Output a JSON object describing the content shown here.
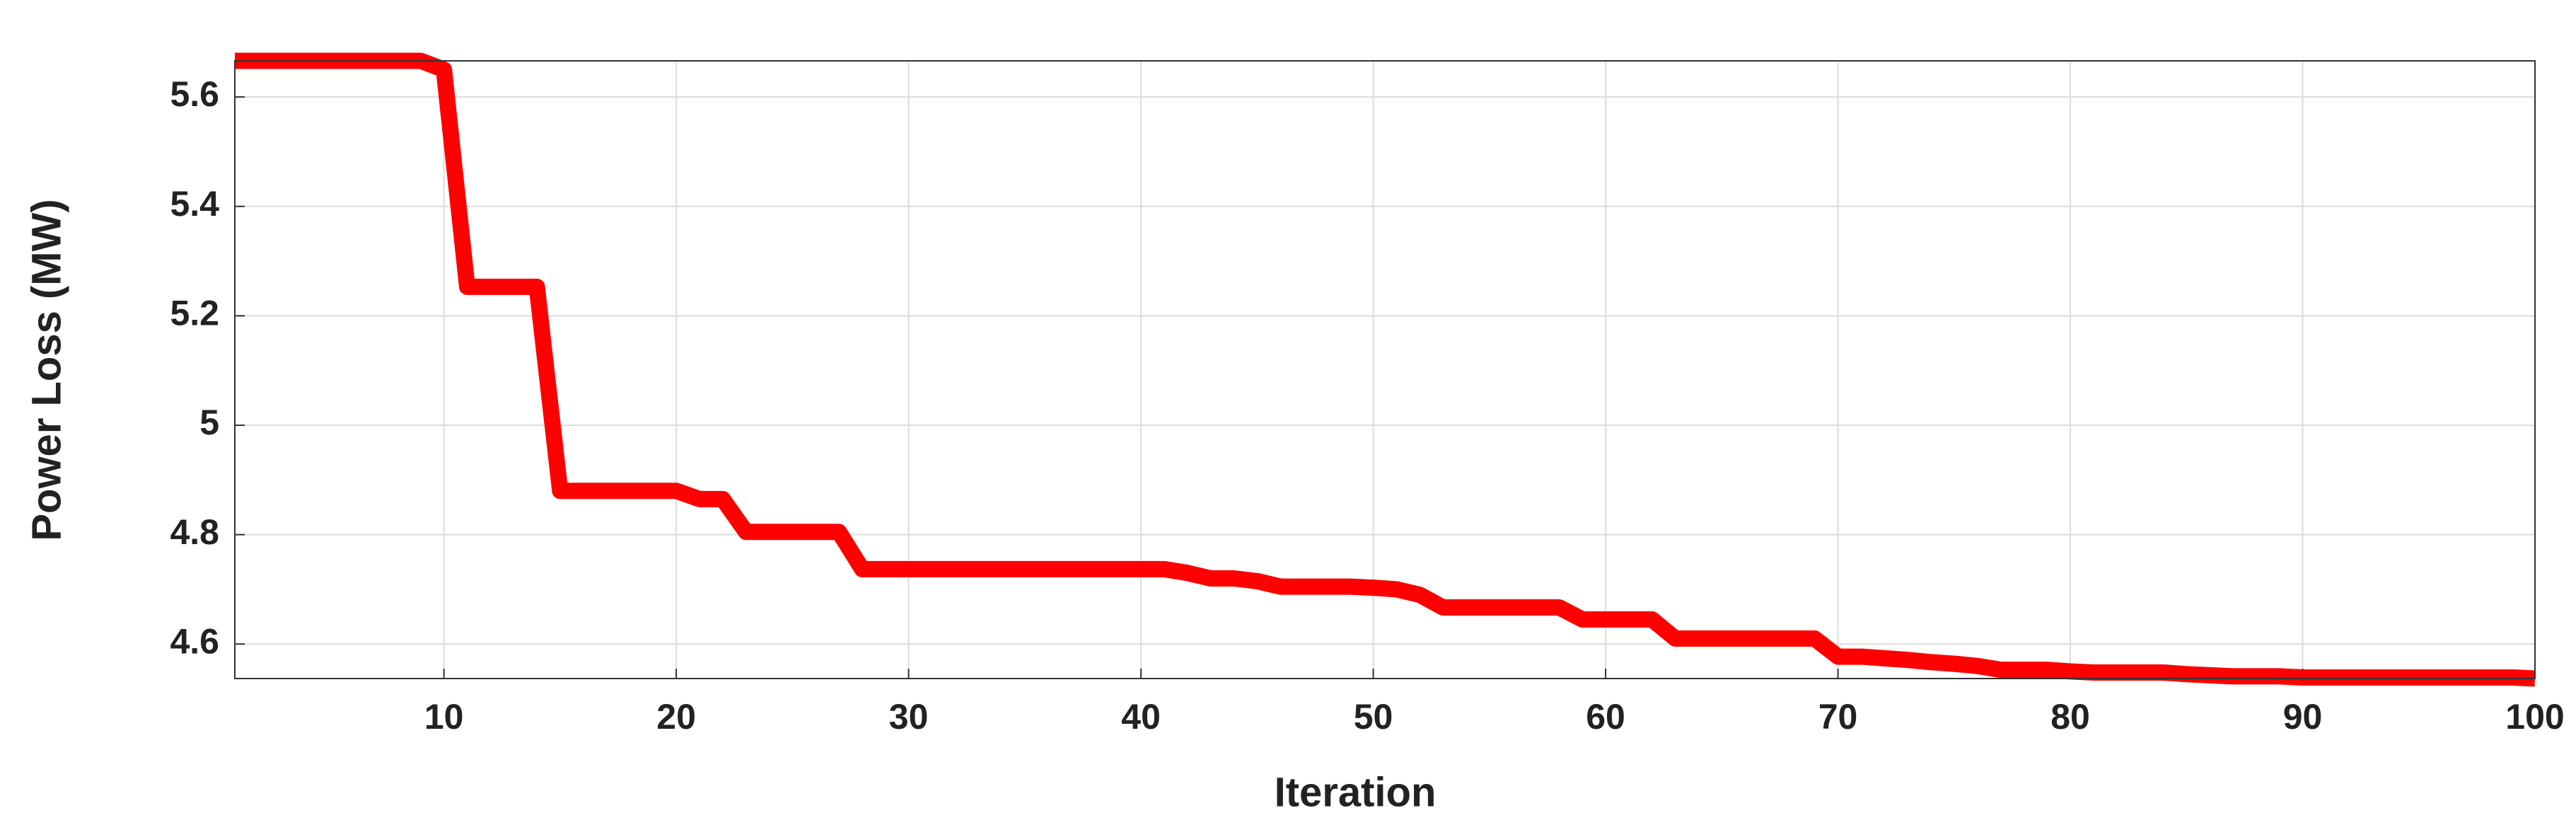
{
  "chart_data": {
    "type": "line",
    "x_label": "Iteration",
    "y_label": "Power Loss (MW)",
    "x": [
      1,
      2,
      3,
      4,
      5,
      6,
      7,
      8,
      9,
      10,
      11,
      12,
      13,
      14,
      15,
      16,
      17,
      18,
      19,
      20,
      21,
      22,
      23,
      24,
      25,
      26,
      27,
      28,
      29,
      30,
      31,
      32,
      33,
      34,
      35,
      36,
      37,
      38,
      39,
      40,
      41,
      42,
      43,
      44,
      45,
      46,
      47,
      48,
      49,
      50,
      51,
      52,
      53,
      54,
      55,
      56,
      57,
      58,
      59,
      60,
      61,
      62,
      63,
      64,
      65,
      66,
      67,
      68,
      69,
      70,
      71,
      72,
      73,
      74,
      75,
      76,
      77,
      78,
      79,
      80,
      81,
      82,
      83,
      84,
      85,
      86,
      87,
      88,
      89,
      90,
      91,
      92,
      93,
      94,
      95,
      96,
      97,
      98,
      99,
      100
    ],
    "series": [
      {
        "color": "#ff0000",
        "values": [
          5.666,
          5.666,
          5.666,
          5.666,
          5.666,
          5.666,
          5.666,
          5.666,
          5.666,
          5.65,
          5.253,
          5.253,
          5.253,
          5.253,
          4.88,
          4.88,
          4.88,
          4.88,
          4.88,
          4.88,
          4.865,
          4.865,
          4.805,
          4.805,
          4.805,
          4.805,
          4.805,
          4.737,
          4.737,
          4.737,
          4.737,
          4.737,
          4.737,
          4.737,
          4.737,
          4.737,
          4.737,
          4.737,
          4.737,
          4.737,
          4.737,
          4.73,
          4.72,
          4.72,
          4.715,
          4.705,
          4.705,
          4.705,
          4.705,
          4.703,
          4.7,
          4.69,
          4.667,
          4.667,
          4.667,
          4.667,
          4.667,
          4.667,
          4.645,
          4.645,
          4.645,
          4.645,
          4.61,
          4.61,
          4.61,
          4.61,
          4.61,
          4.61,
          4.61,
          4.577,
          4.577,
          4.574,
          4.571,
          4.567,
          4.564,
          4.56,
          4.553,
          4.553,
          4.553,
          4.55,
          4.548,
          4.548,
          4.548,
          4.548,
          4.545,
          4.543,
          4.541,
          4.541,
          4.541,
          4.539,
          4.539,
          4.539,
          4.539,
          4.539,
          4.539,
          4.539,
          4.539,
          4.539,
          4.539,
          4.537
        ]
      }
    ],
    "xlim": [
      1,
      100
    ],
    "xticks": [
      10,
      20,
      30,
      40,
      50,
      60,
      70,
      80,
      90,
      100
    ],
    "ylim": [
      4.537,
      5.666
    ],
    "yticks": [
      4.6,
      4.8,
      5,
      5.2,
      5.4,
      5.6
    ],
    "grid": true
  }
}
